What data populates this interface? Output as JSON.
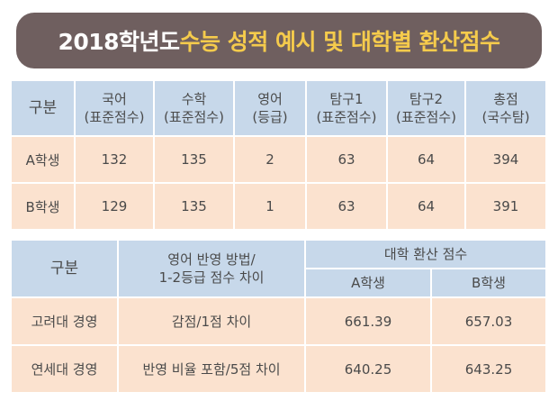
{
  "title": {
    "part1": "2018학년도 ",
    "part2": "수능 성적 예시 및 대학별 환산점수"
  },
  "scores_table": {
    "headers": [
      {
        "line1": "구분",
        "line2": ""
      },
      {
        "line1": "국어",
        "line2": "(표준점수)"
      },
      {
        "line1": "수학",
        "line2": "(표준점수)"
      },
      {
        "line1": "영어",
        "line2": "(등급)"
      },
      {
        "line1": "탐구1",
        "line2": "(표준점수)"
      },
      {
        "line1": "탐구2",
        "line2": "(표준점수)"
      },
      {
        "line1": "총점",
        "line2": "(국수탐)"
      }
    ],
    "rows": [
      [
        "A학생",
        "132",
        "135",
        "2",
        "63",
        "64",
        "394"
      ],
      [
        "B학생",
        "129",
        "135",
        "1",
        "63",
        "64",
        "391"
      ]
    ]
  },
  "conversion_table": {
    "group_label": "구분",
    "method_header_line1": "영어 반영 방법/",
    "method_header_line2": "1-2등급 점수 차이",
    "converted_header": "대학 환산 점수",
    "student_headers": [
      "A학생",
      "B학생"
    ],
    "rows": [
      [
        "고려대 경영",
        "감점/1점 차이",
        "661.39",
        "657.03"
      ],
      [
        "연세대 경영",
        "반영 비율 포함/5점 차이",
        "640.25",
        "643.25"
      ]
    ]
  },
  "colors": {
    "banner": "#6f5f5f",
    "title_highlight": "#f5cb4c",
    "header_fill": "#c7d8ea",
    "row_fill": "#fbe2cf"
  }
}
